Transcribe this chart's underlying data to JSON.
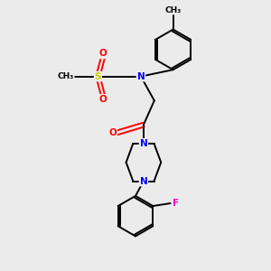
{
  "background_color": "#ebebeb",
  "atoms": {
    "S": {
      "color": "#cccc00"
    },
    "O": {
      "color": "#ff0000"
    },
    "N": {
      "color": "#0000ff"
    },
    "F": {
      "color": "#ff00cc"
    }
  },
  "bond_color": "#000000",
  "bond_width": 1.4,
  "font_size_atom": 7.5,
  "font_size_small": 6.5
}
